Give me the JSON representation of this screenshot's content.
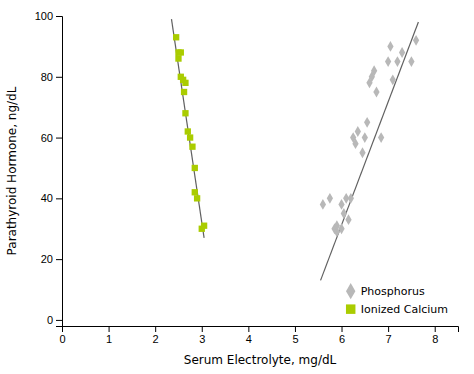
{
  "chart_data": {
    "type": "scatter",
    "xlabel": "Serum Electrolyte, mg/dL",
    "ylabel": "Parathyroid Hormone, ng/dL",
    "xlim": [
      0,
      8.5
    ],
    "ylim": [
      -2,
      100
    ],
    "xticks": [
      0,
      1,
      2,
      3,
      4,
      5,
      6,
      7,
      8
    ],
    "yticks": [
      0,
      20,
      40,
      60,
      80,
      100
    ],
    "legend": "lower right",
    "series": [
      {
        "type": "line",
        "color": "#606060",
        "x": [
          2.35,
          3.05
        ],
        "values": [
          99,
          27
        ]
      },
      {
        "type": "line",
        "color": "#606060",
        "x": [
          5.55,
          7.65
        ],
        "values": [
          13,
          98
        ]
      },
      {
        "type": "scatter",
        "name": "Ionized Calcium",
        "color": "#aacc00",
        "marker": "square",
        "x": [
          2.45,
          2.5,
          2.5,
          2.55,
          2.55,
          2.6,
          2.62,
          2.65,
          2.65,
          2.7,
          2.75,
          2.8,
          2.85,
          2.85,
          2.9,
          3.0,
          3.05
        ],
        "values": [
          93,
          88,
          86,
          88,
          80,
          79,
          75,
          78,
          68,
          62,
          60,
          57,
          50,
          42,
          40,
          30,
          31
        ]
      },
      {
        "type": "scatter",
        "name": "Phosphorus",
        "color": "#b8b8b8",
        "marker": "diamond",
        "x": [
          5.6,
          5.75,
          5.85,
          5.9,
          5.9,
          6.0,
          6.0,
          6.05,
          6.1,
          6.15,
          6.2,
          6.25,
          6.3,
          6.35,
          6.45,
          6.5,
          6.55,
          6.6,
          6.65,
          6.7,
          6.75,
          6.85,
          7.0,
          7.05,
          7.1,
          7.2,
          7.3,
          7.5,
          7.6
        ],
        "values": [
          38,
          40,
          30,
          29,
          31,
          30,
          38,
          35,
          40,
          33,
          40,
          60,
          58,
          62,
          55,
          60,
          65,
          78,
          80,
          82,
          75,
          60,
          85,
          90,
          79,
          85,
          88,
          85,
          92
        ]
      }
    ]
  }
}
